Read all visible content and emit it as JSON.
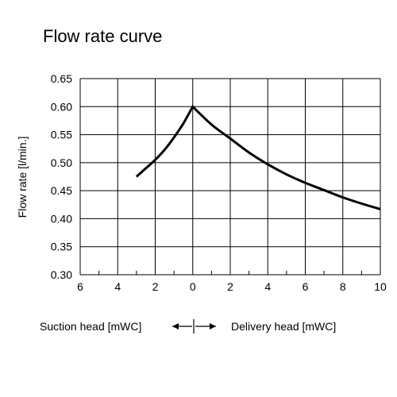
{
  "chart_data": {
    "type": "line",
    "title": "Flow rate curve",
    "ylabel": "Flow rate [l/min.]",
    "x_left_label": "Suction head [mWC]",
    "x_right_label": "Delivery head [mWC]",
    "xlim": [
      -6,
      10
    ],
    "ylim": [
      0.3,
      0.65
    ],
    "x_ticks": [
      -6,
      -4,
      -2,
      0,
      2,
      4,
      6,
      8,
      10
    ],
    "x_tick_labels": [
      "6",
      "4",
      "2",
      "0",
      "2",
      "4",
      "6",
      "8",
      "10"
    ],
    "y_ticks": [
      0.3,
      0.35,
      0.4,
      0.45,
      0.5,
      0.55,
      0.6,
      0.65
    ],
    "y_tick_labels": [
      "0.30",
      "0.35",
      "0.40",
      "0.45",
      "0.50",
      "0.55",
      "0.60",
      "0.65"
    ],
    "grid": true,
    "series": [
      {
        "x": [
          -3.0,
          -2.5,
          -2.0,
          -1.5,
          -1.0,
          -0.5,
          0.0,
          1.0,
          2.0,
          3.0,
          4.0,
          5.0,
          6.0,
          7.0,
          8.0,
          9.0,
          10.0
        ],
        "y": [
          0.475,
          0.49,
          0.505,
          0.523,
          0.545,
          0.57,
          0.6,
          0.568,
          0.543,
          0.518,
          0.497,
          0.479,
          0.464,
          0.451,
          0.438,
          0.427,
          0.417
        ]
      }
    ]
  }
}
